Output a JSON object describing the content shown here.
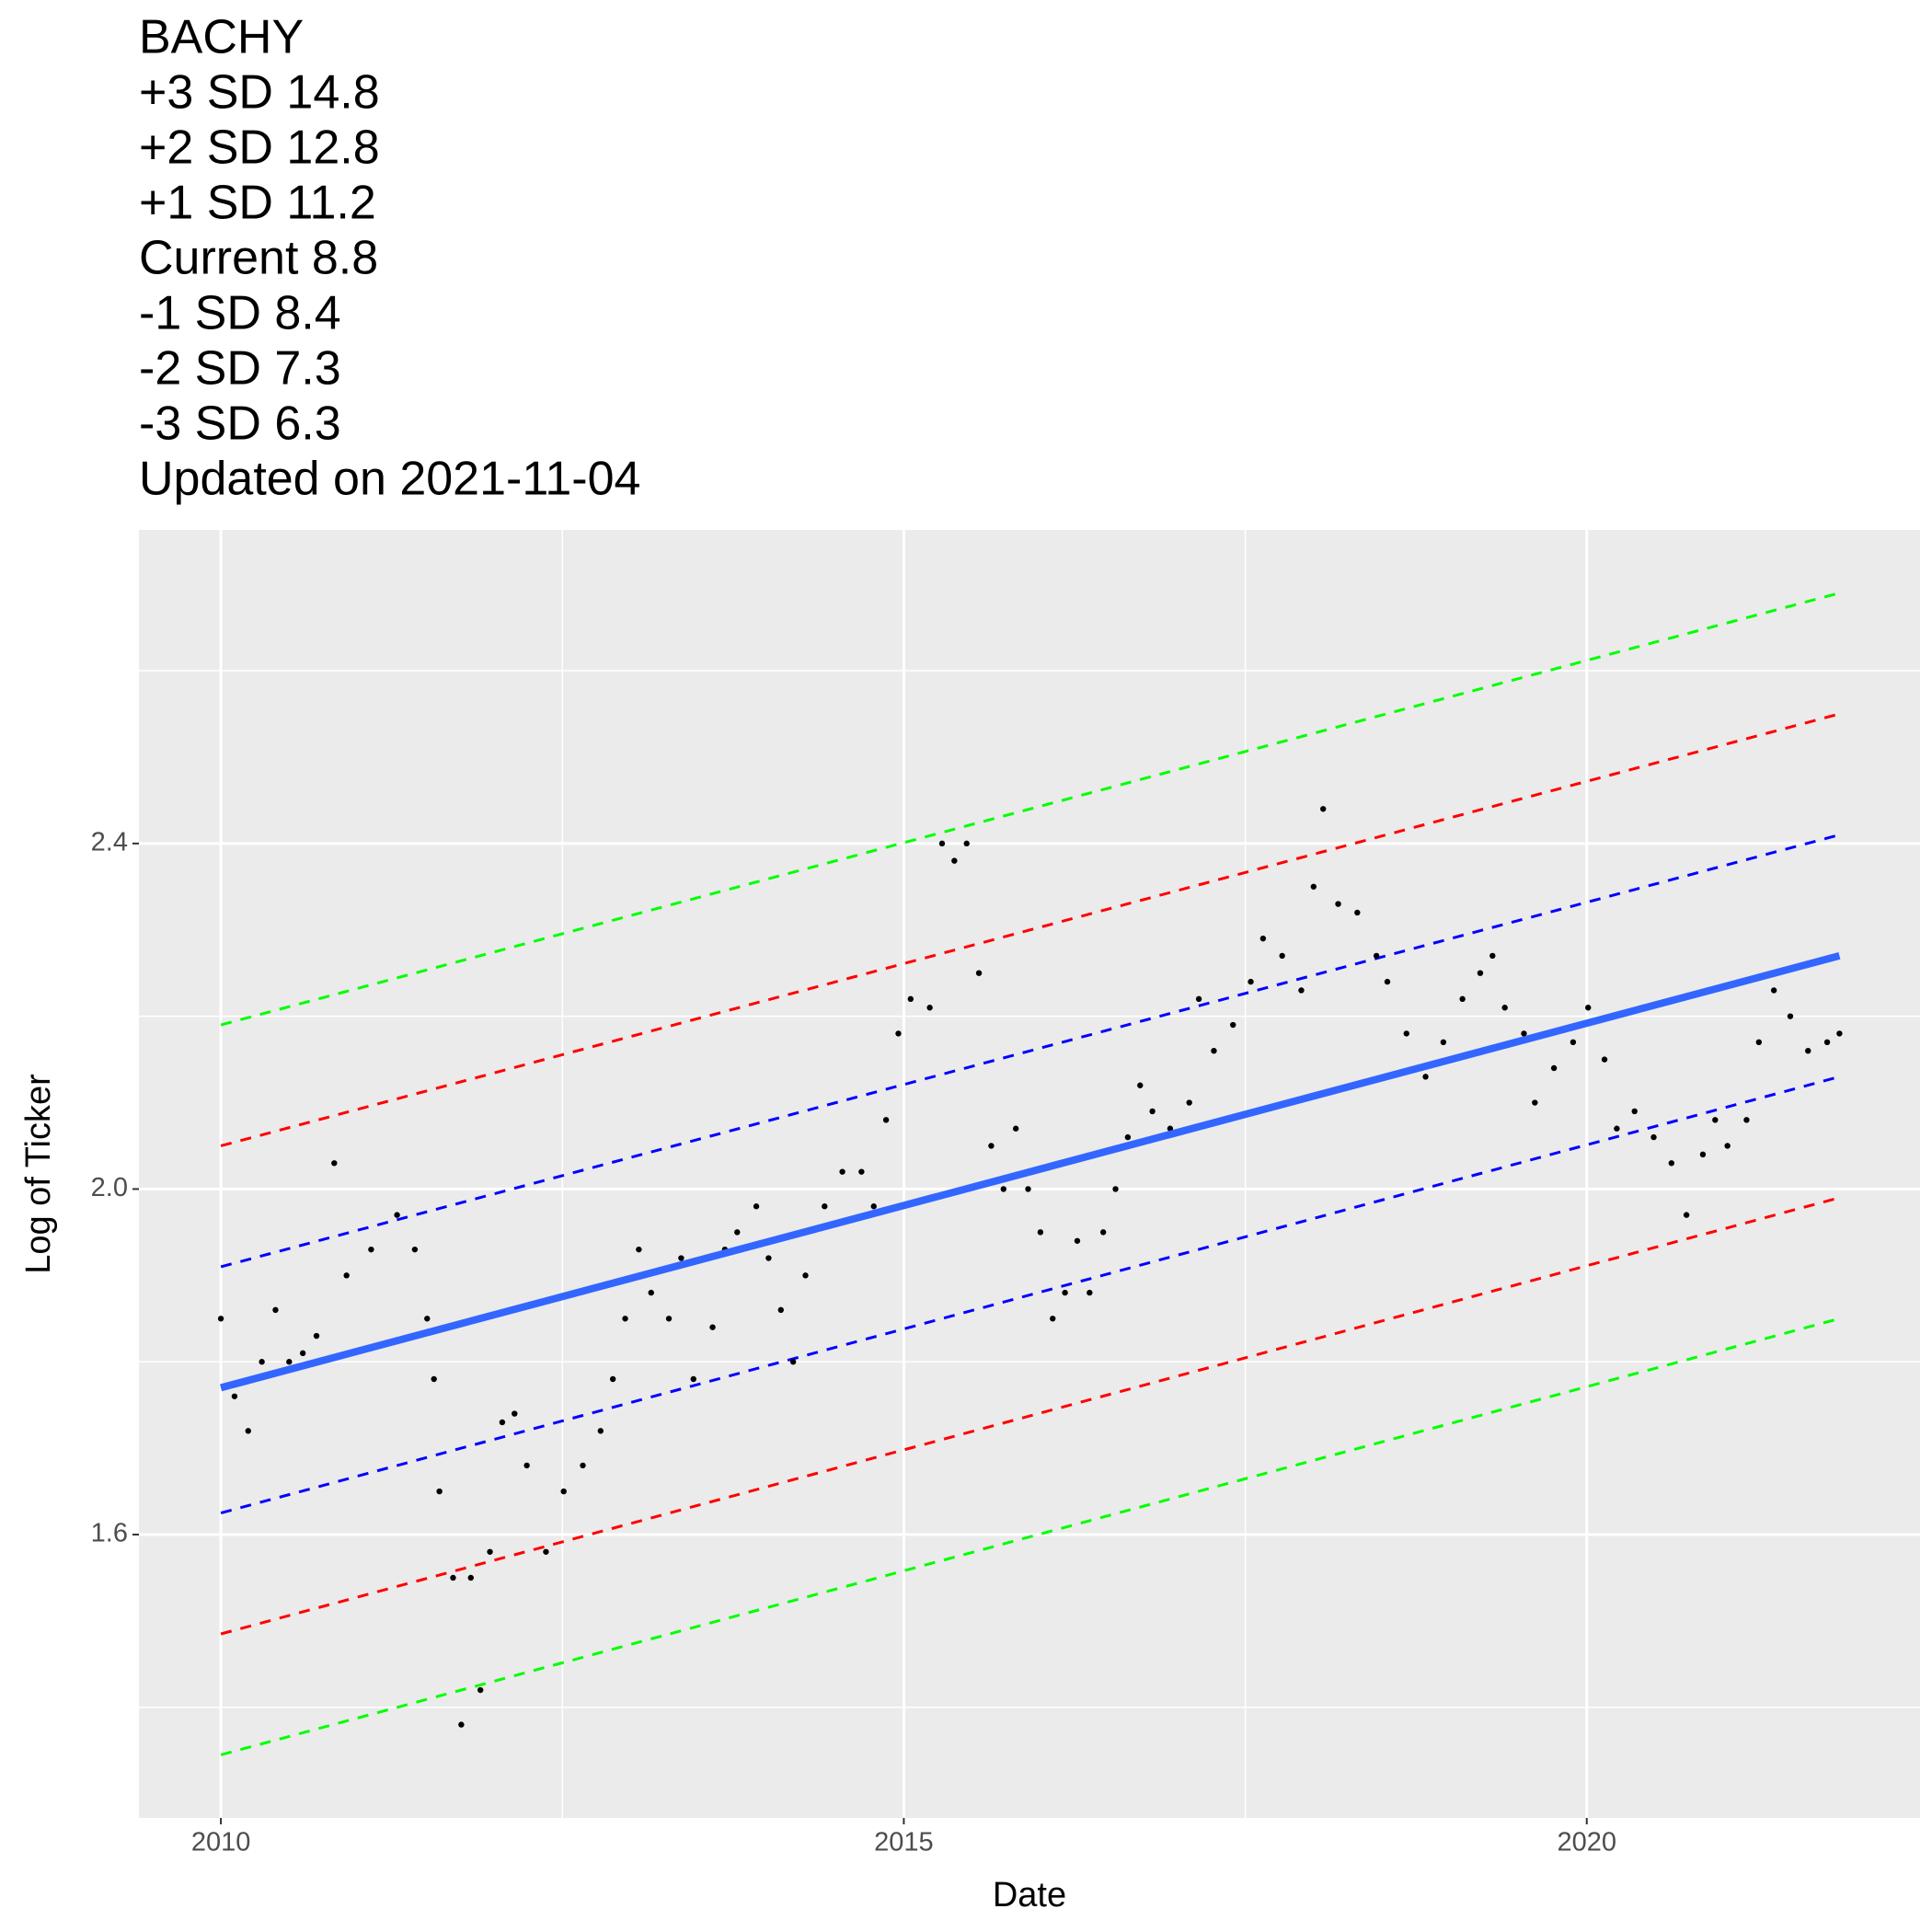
{
  "chart_data": {
    "type": "scatter",
    "title": [
      "BACHY",
      "+3 SD 14.8",
      "+2 SD 12.8",
      "+1 SD 11.2",
      "Current 8.8",
      "-1 SD 8.4",
      "-2 SD 7.3",
      "-3 SD 6.3",
      "Updated on 2021-11-04"
    ],
    "x_label": "Date",
    "y_label": "Log of Ticker",
    "xlim": [
      2009.4,
      2022.44
    ],
    "ylim": [
      1.272,
      2.763
    ],
    "xticks": [
      2010,
      2015,
      2020
    ],
    "yticks": [
      1.6,
      {
        "value": 2,
        "label": "2.0"
      },
      2.4
    ],
    "grid": true,
    "panel_color": "#EBEBEB",
    "series": [
      {
        "mark": "point",
        "color": "#000000",
        "x": [
          2010.0,
          2010.1,
          2010.2,
          2010.3,
          2010.4,
          2010.5,
          2010.6,
          2010.7,
          2010.83,
          2010.92,
          2011.1,
          2011.29,
          2011.42,
          2011.51,
          2011.56,
          2011.6,
          2011.7,
          2011.76,
          2011.83,
          2011.9,
          2011.97,
          2012.06,
          2012.15,
          2012.24,
          2012.38,
          2012.51,
          2012.65,
          2012.78,
          2012.87,
          2012.96,
          2013.06,
          2013.15,
          2013.28,
          2013.37,
          2013.46,
          2013.6,
          2013.69,
          2013.78,
          2013.92,
          2014.01,
          2014.1,
          2014.19,
          2014.28,
          2014.42,
          2014.55,
          2014.69,
          2014.78,
          2014.87,
          2014.96,
          2015.05,
          2015.19,
          2015.28,
          2015.37,
          2015.46,
          2015.55,
          2015.64,
          2015.73,
          2015.82,
          2015.91,
          2016.0,
          2016.09,
          2016.18,
          2016.27,
          2016.36,
          2016.46,
          2016.55,
          2016.64,
          2016.73,
          2016.82,
          2016.95,
          2017.09,
          2017.16,
          2017.27,
          2017.41,
          2017.54,
          2017.63,
          2017.77,
          2017.91,
          2018.0,
          2018.07,
          2018.18,
          2018.32,
          2018.46,
          2018.54,
          2018.68,
          2018.82,
          2018.95,
          2019.09,
          2019.22,
          2019.31,
          2019.4,
          2019.54,
          2019.62,
          2019.76,
          2019.9,
          2020.01,
          2020.13,
          2020.22,
          2020.35,
          2020.49,
          2020.62,
          2020.73,
          2020.85,
          2020.94,
          2021.03,
          2021.17,
          2021.26,
          2021.37,
          2021.49,
          2021.62,
          2021.76,
          2021.85
        ],
        "values": [
          1.85,
          1.76,
          1.72,
          1.8,
          1.86,
          1.8,
          1.81,
          1.83,
          2.03,
          1.9,
          1.93,
          1.97,
          1.93,
          1.85,
          1.78,
          1.65,
          1.55,
          1.38,
          1.55,
          1.42,
          1.58,
          1.73,
          1.74,
          1.68,
          1.58,
          1.65,
          1.68,
          1.72,
          1.78,
          1.85,
          1.93,
          1.88,
          1.85,
          1.92,
          1.78,
          1.84,
          1.93,
          1.95,
          1.98,
          1.92,
          1.86,
          1.8,
          1.9,
          1.98,
          2.02,
          2.02,
          1.98,
          2.08,
          2.18,
          2.22,
          2.21,
          2.4,
          2.38,
          2.4,
          2.25,
          2.05,
          2.0,
          2.07,
          2.0,
          1.95,
          1.85,
          1.88,
          1.94,
          1.88,
          1.95,
          2.0,
          2.06,
          2.12,
          2.09,
          2.07,
          2.1,
          2.22,
          2.16,
          2.19,
          2.24,
          2.29,
          2.27,
          2.23,
          2.35,
          2.44,
          2.33,
          2.32,
          2.27,
          2.24,
          2.18,
          2.13,
          2.17,
          2.22,
          2.25,
          2.27,
          2.21,
          2.18,
          2.1,
          2.14,
          2.17,
          2.21,
          2.15,
          2.07,
          2.09,
          2.06,
          2.03,
          1.97,
          2.04,
          2.08,
          2.05,
          2.08,
          2.17,
          2.23,
          2.2,
          2.16,
          2.17,
          2.18
        ]
      },
      {
        "mark": "line",
        "color": "#00FF00",
        "dash": true,
        "x": [
          2010,
          2021.85
        ],
        "values": [
          2.19,
          2.69
        ]
      },
      {
        "mark": "line",
        "color": "#FF0000",
        "dash": true,
        "x": [
          2010,
          2021.85
        ],
        "values": [
          2.05,
          2.55
        ]
      },
      {
        "mark": "line",
        "color": "#0000FF",
        "dash": true,
        "x": [
          2010,
          2021.85
        ],
        "values": [
          1.91,
          2.41
        ]
      },
      {
        "mark": "line",
        "color": "#3366FF",
        "dash": false,
        "x": [
          2010,
          2021.85
        ],
        "values": [
          1.77,
          2.27
        ]
      },
      {
        "mark": "line",
        "color": "#0000FF",
        "dash": true,
        "x": [
          2010,
          2021.85
        ],
        "values": [
          1.625,
          2.13
        ]
      },
      {
        "mark": "line",
        "color": "#FF0000",
        "dash": true,
        "x": [
          2010,
          2021.85
        ],
        "values": [
          1.485,
          1.99
        ]
      },
      {
        "mark": "line",
        "color": "#00FF00",
        "dash": true,
        "x": [
          2010,
          2021.85
        ],
        "values": [
          1.345,
          1.85
        ]
      }
    ]
  }
}
